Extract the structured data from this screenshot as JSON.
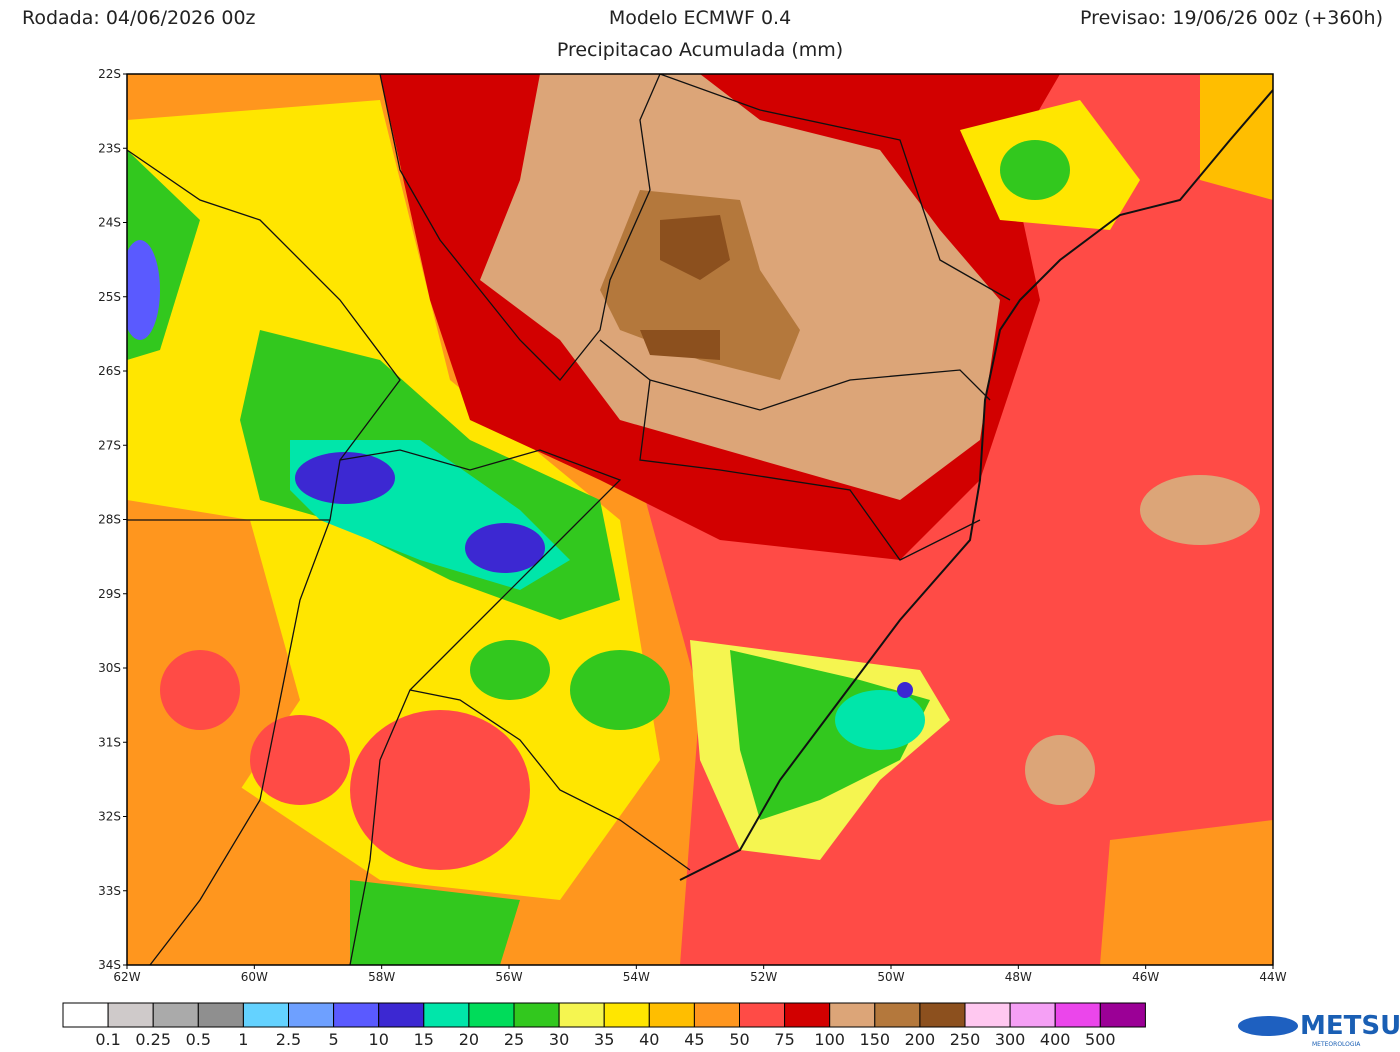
{
  "header": {
    "run": "Rodada: 04/06/2026 00z",
    "model": "Modelo ECMWF 0.4",
    "subtitle": "Precipitacao Acumulada (mm)",
    "forecast": "Previsao: 19/06/26 00z (+360h)"
  },
  "map": {
    "lat_labels": [
      "22S",
      "23S",
      "24S",
      "25S",
      "26S",
      "27S",
      "28S",
      "29S",
      "30S",
      "31S",
      "32S",
      "33S",
      "34S"
    ],
    "lon_labels": [
      "62W",
      "60W",
      "58W",
      "56W",
      "54W",
      "52W",
      "50W",
      "48W",
      "46W",
      "44W"
    ]
  },
  "colorbar": {
    "colors": [
      "#ffffff",
      "#cfcaca",
      "#aaaaaa",
      "#8f8f8f",
      "#64d2ff",
      "#6ea0ff",
      "#5a5aff",
      "#3c28d2",
      "#00e6aa",
      "#00dc5a",
      "#32c81e",
      "#f5f550",
      "#ffe600",
      "#ffbe00",
      "#ff961e",
      "#ff4b46",
      "#d20000",
      "#dca578",
      "#b4783c",
      "#8c501e",
      "#ffc8f0",
      "#f5a0f5",
      "#eb46eb",
      "#9b0096"
    ],
    "labels": [
      "0.1",
      "0.25",
      "0.5",
      "1",
      "2.5",
      "5",
      "10",
      "15",
      "20",
      "25",
      "30",
      "35",
      "40",
      "45",
      "50",
      "75",
      "100",
      "150",
      "200",
      "250",
      "300",
      "400",
      "500"
    ]
  },
  "logo": {
    "name": "METSUL",
    "tagline": "METEOROLOGIA"
  }
}
